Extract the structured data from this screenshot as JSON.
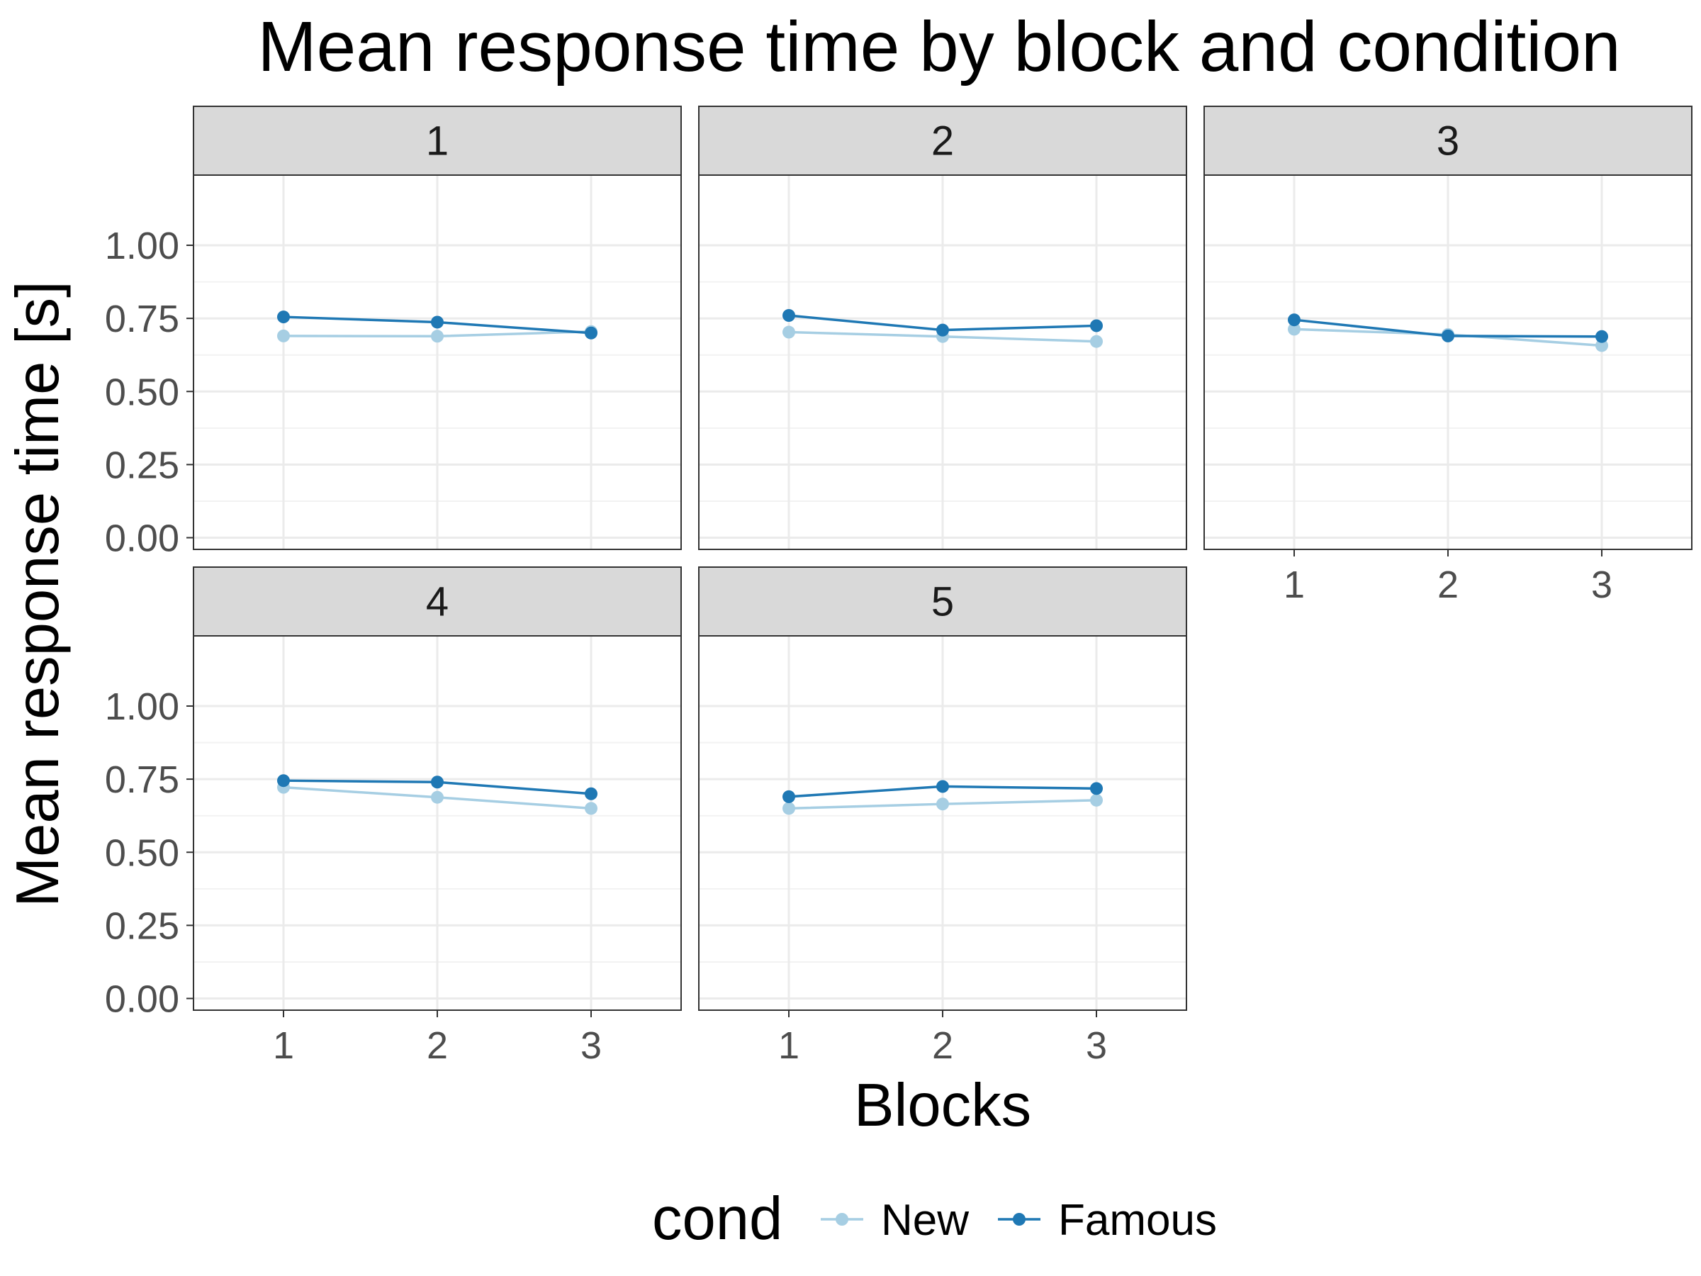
{
  "chart_data": {
    "type": "line",
    "title": "Mean response time by block and condition",
    "xlabel": "Blocks",
    "ylabel": "Mean response time [s]",
    "x": [
      1,
      2,
      3
    ],
    "x_tick_labels": [
      "1",
      "2",
      "3"
    ],
    "ylim": [
      -0.04,
      1.24
    ],
    "y_ticks": [
      0,
      0.25,
      0.5,
      0.75,
      1.0
    ],
    "y_tick_labels": [
      "0.00",
      "0.25",
      "0.50",
      "0.75",
      "1.00"
    ],
    "grid": true,
    "legend": {
      "title": "cond",
      "position": "bottom",
      "entries": [
        "New",
        "Famous"
      ]
    },
    "series_colors": {
      "New": "#a6cee3",
      "Famous": "#1f78b4"
    },
    "facets": [
      {
        "label": "1",
        "series": [
          {
            "name": "New",
            "values": [
              0.69,
              0.689,
              0.705
            ]
          },
          {
            "name": "Famous",
            "values": [
              0.755,
              0.737,
              0.7
            ]
          }
        ]
      },
      {
        "label": "2",
        "series": [
          {
            "name": "New",
            "values": [
              0.703,
              0.688,
              0.671
            ]
          },
          {
            "name": "Famous",
            "values": [
              0.76,
              0.71,
              0.725
            ]
          }
        ]
      },
      {
        "label": "3",
        "series": [
          {
            "name": "New",
            "values": [
              0.713,
              0.695,
              0.657
            ]
          },
          {
            "name": "Famous",
            "values": [
              0.745,
              0.69,
              0.688
            ]
          }
        ]
      },
      {
        "label": "4",
        "series": [
          {
            "name": "New",
            "values": [
              0.722,
              0.688,
              0.65
            ]
          },
          {
            "name": "Famous",
            "values": [
              0.745,
              0.74,
              0.7
            ]
          }
        ]
      },
      {
        "label": "5",
        "series": [
          {
            "name": "New",
            "values": [
              0.65,
              0.665,
              0.678
            ]
          },
          {
            "name": "Famous",
            "values": [
              0.69,
              0.725,
              0.718
            ]
          }
        ]
      }
    ]
  }
}
